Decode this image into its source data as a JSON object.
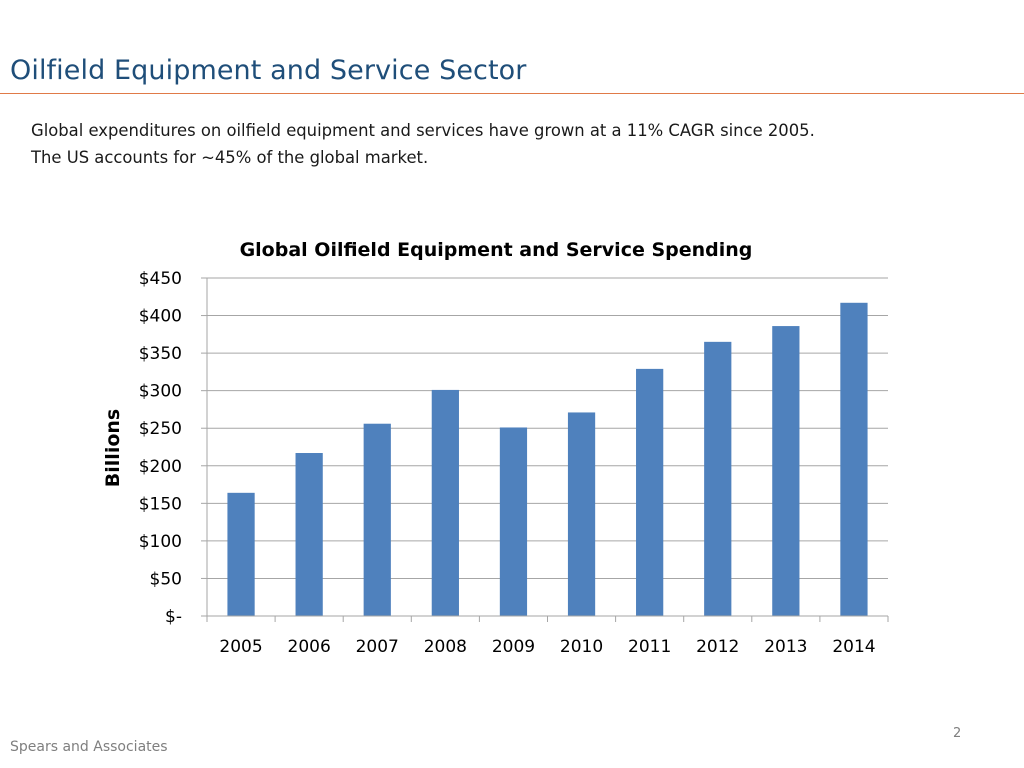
{
  "slide": {
    "title": "Oilfield Equipment and Service Sector",
    "subtitle_lines": [
      "Global expenditures on oilfield equipment and services have grown at a 11% CAGR since 2005.",
      "The US accounts for ~45% of the global market."
    ],
    "footer_source": "Spears and Associates",
    "page_number": "2"
  },
  "colors": {
    "title": "#1f4e79",
    "rule": "#e07a47",
    "bar": "#4f81bd",
    "grid": "#a6a6a6"
  },
  "chart_data": {
    "type": "bar",
    "title": "Global Oilfield Equipment and Service Spending",
    "ylabel": "Billions",
    "xlabel": "",
    "categories": [
      "2005",
      "2006",
      "2007",
      "2008",
      "2009",
      "2010",
      "2011",
      "2012",
      "2013",
      "2014"
    ],
    "values": [
      164,
      217,
      256,
      301,
      251,
      271,
      329,
      365,
      386,
      417
    ],
    "ylim": [
      0,
      450
    ],
    "yticks": [
      0,
      50,
      100,
      150,
      200,
      250,
      300,
      350,
      400,
      450
    ],
    "ytick_labels": [
      "$-",
      "$50",
      "$100",
      "$150",
      "$200",
      "$250",
      "$300",
      "$350",
      "$400",
      "$450"
    ],
    "grid": true,
    "legend": "none"
  }
}
